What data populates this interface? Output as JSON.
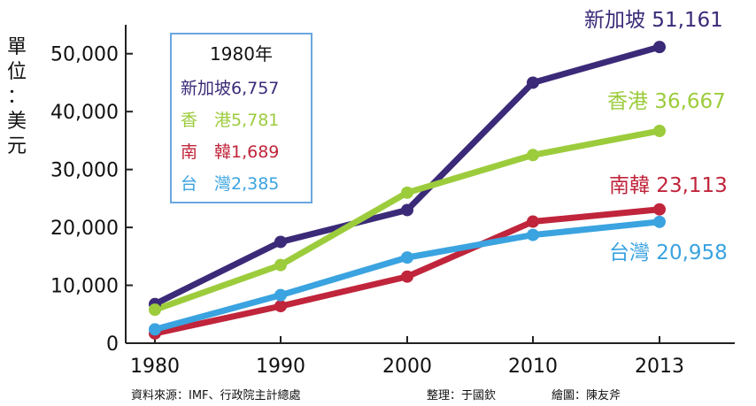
{
  "chart_data": {
    "type": "line",
    "ylabel_chars": [
      "單",
      "位",
      "：",
      "美",
      "元"
    ],
    "categories": [
      "1980",
      "1990",
      "2000",
      "2010",
      "2013"
    ],
    "ylim": [
      0,
      55000
    ],
    "yticks": [
      "0",
      "10,000",
      "20,000",
      "30,000",
      "40,000",
      "50,000"
    ],
    "ytick_values": [
      0,
      10000,
      20000,
      30000,
      40000,
      50000
    ],
    "grid": false,
    "series": [
      {
        "name": "新加坡",
        "color": "#3b2a78",
        "values": [
          6757,
          17500,
          23000,
          45000,
          51161
        ],
        "end_label": "新加坡  51,161"
      },
      {
        "name": "香港",
        "color": "#9ccc3c",
        "values": [
          5781,
          13500,
          26000,
          32500,
          36667
        ],
        "end_label": "香港  36,667"
      },
      {
        "name": "南韓",
        "color": "#c0253b",
        "values": [
          1689,
          6400,
          11500,
          21000,
          23113
        ],
        "end_label": "南韓  23,113"
      },
      {
        "name": "台灣",
        "color": "#3aa3e0",
        "values": [
          2385,
          8300,
          14800,
          18700,
          20958
        ],
        "end_label": "台灣  20,958"
      }
    ]
  },
  "legend": {
    "title": "1980年",
    "items": [
      {
        "text": "新加坡6,757",
        "color": "#3b2a78"
      },
      {
        "text": "香　港5,781",
        "color": "#9ccc3c"
      },
      {
        "text": "南　韓1,689",
        "color": "#c0253b"
      },
      {
        "text": "台　灣2,385",
        "color": "#3aa3e0"
      }
    ]
  },
  "footer": {
    "source": "資料來源：IMF、行政院主計總處",
    "editor": "整理：于國欽",
    "drawing": "繪圖：陳友斧"
  }
}
